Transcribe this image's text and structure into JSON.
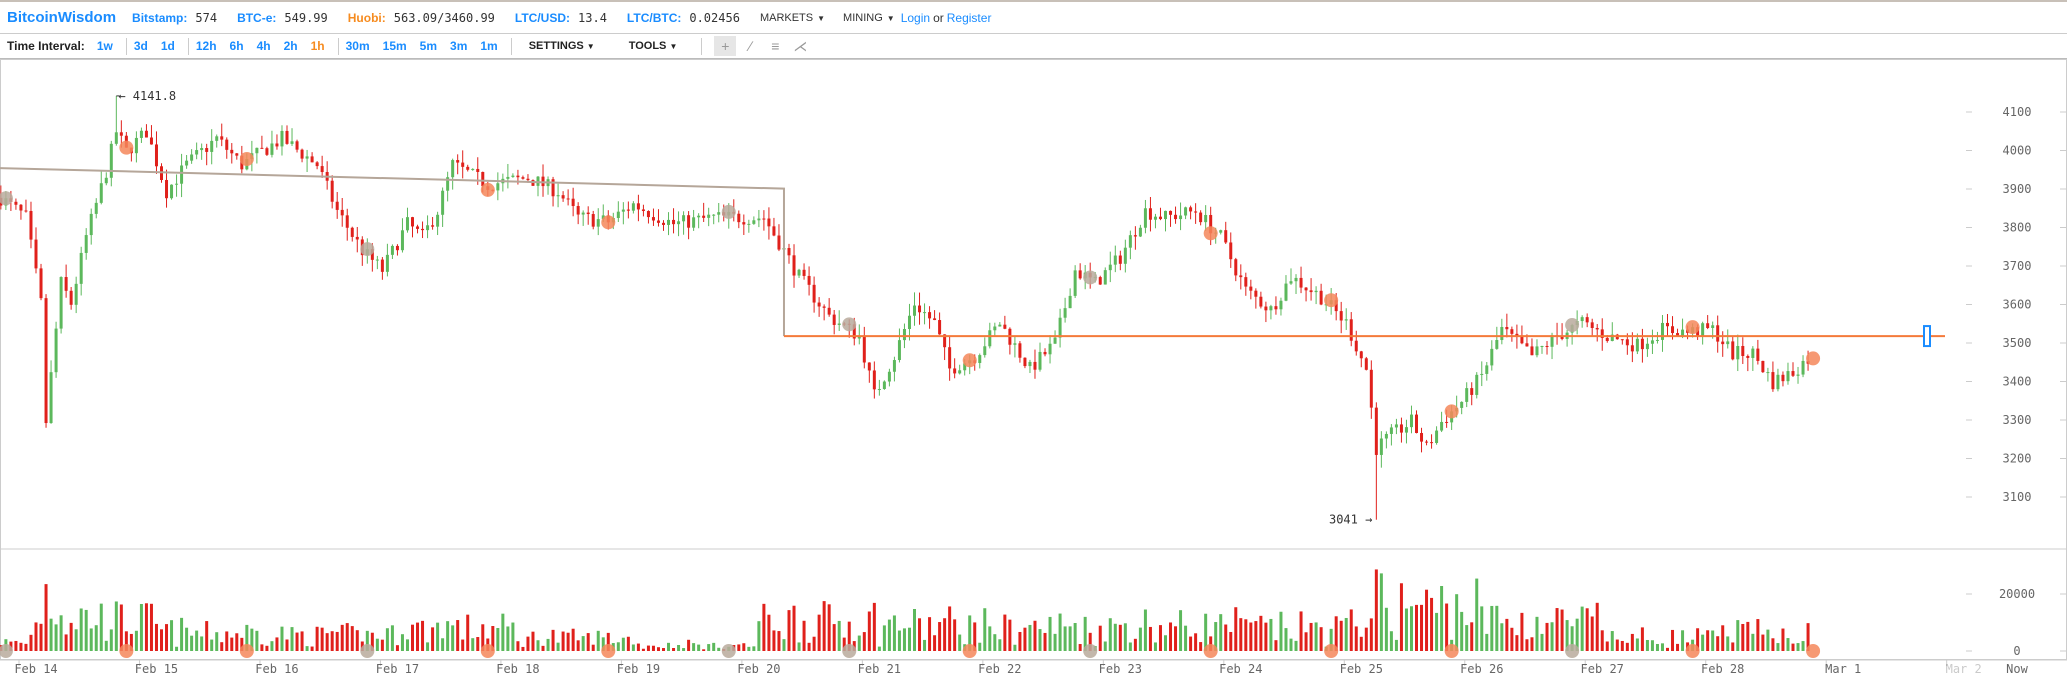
{
  "header": {
    "logo": "BitcoinWisdom",
    "tickers": [
      {
        "label": "Bitstamp:",
        "value": "574",
        "highlight": false
      },
      {
        "label": "BTC-e:",
        "value": "549.99",
        "highlight": false
      },
      {
        "label": "Huobi:",
        "value": "563.09/3460.99",
        "highlight": true
      },
      {
        "label": "LTC/USD:",
        "value": "13.4",
        "highlight": false
      },
      {
        "label": "LTC/BTC:",
        "value": "0.02456",
        "highlight": false
      }
    ],
    "markets": "MARKETS",
    "mining": "MINING",
    "login": "Login",
    "or": "or",
    "register": "Register"
  },
  "toolbar": {
    "time_interval_label": "Time Interval:",
    "groups": [
      [
        "1w"
      ],
      [
        "3d",
        "1d"
      ],
      [
        "12h",
        "6h",
        "4h",
        "2h",
        "1h"
      ],
      [
        "30m",
        "15m",
        "5m",
        "3m",
        "1m"
      ]
    ],
    "active_interval": "1h",
    "settings": "SETTINGS",
    "tools": "TOOLS",
    "tools_icons": [
      "crosshair-icon",
      "line-icon",
      "horizontal-lines-icon",
      "fan-icon"
    ]
  },
  "colors": {
    "brand": "#1a8cff",
    "accent": "#f68b1f",
    "up": "#5cb85c",
    "down": "#e0201b",
    "trend": "#b5a699",
    "level": "#f47a3a",
    "marker_orange": "#f4875a",
    "marker_grey": "#b8aa9c",
    "handle": "#1a8cff"
  },
  "chart_data": {
    "type": "candlestick",
    "interval": "1h",
    "price_axis": {
      "ticks": [
        3100,
        3200,
        3300,
        3400,
        3500,
        3600,
        3700,
        3800,
        3900,
        4000,
        4100
      ]
    },
    "volume_axis": {
      "ticks": [
        0,
        20000
      ]
    },
    "date_labels": [
      "Feb 14",
      "Feb 15",
      "Feb 16",
      "Feb 17",
      "Feb 18",
      "Feb 19",
      "Feb 20",
      "Feb 21",
      "Feb 22",
      "Feb 23",
      "Feb 24",
      "Feb 25",
      "Feb 26",
      "Feb 27",
      "Feb 28",
      "Mar 1",
      "Mar 2"
    ],
    "now_label": "Now",
    "close_path": [
      [
        "02-13 17:00",
        3877
      ],
      [
        "02-13 22:00",
        3826
      ],
      [
        "02-14 01:00",
        3603
      ],
      [
        "02-14 02:00",
        3295
      ],
      [
        "02-14 05:00",
        3655
      ],
      [
        "02-14 07:00",
        3603
      ],
      [
        "02-14 10:00",
        3775
      ],
      [
        "02-14 14:00",
        3946
      ],
      [
        "02-14 16:00",
        4049
      ],
      [
        "02-14 18:00",
        3997
      ],
      [
        "02-14 22:00",
        4049
      ],
      [
        "02-15 02:00",
        3894
      ],
      [
        "02-15 06:00",
        3963
      ],
      [
        "02-15 12:00",
        4031
      ],
      [
        "02-15 17:00",
        3963
      ],
      [
        "02-16 01:00",
        4031
      ],
      [
        "02-16 08:00",
        3963
      ],
      [
        "02-16 12:00",
        3843
      ],
      [
        "02-16 17:00",
        3740
      ],
      [
        "02-16 21:00",
        3689
      ],
      [
        "02-17 02:00",
        3809
      ],
      [
        "02-17 05:00",
        3775
      ],
      [
        "02-17 08:00",
        3843
      ],
      [
        "02-17 11:00",
        3963
      ],
      [
        "02-17 18:00",
        3912
      ],
      [
        "02-18 02:00",
        3929
      ],
      [
        "02-18 08:00",
        3894
      ],
      [
        "02-18 12:00",
        3826
      ],
      [
        "02-18 18:00",
        3815
      ],
      [
        "02-18 23:00",
        3860
      ],
      [
        "02-19 07:00",
        3809
      ],
      [
        "02-19 15:00",
        3826
      ],
      [
        "02-20 01:00",
        3826
      ],
      [
        "02-20 05:00",
        3740
      ],
      [
        "02-20 08:00",
        3672
      ],
      [
        "02-20 14:00",
        3569
      ],
      [
        "02-20 20:00",
        3518
      ],
      [
        "02-20 23:00",
        3364
      ],
      [
        "02-21 03:00",
        3466
      ],
      [
        "02-21 07:00",
        3603
      ],
      [
        "02-21 11:00",
        3552
      ],
      [
        "02-21 14:00",
        3432
      ],
      [
        "02-21 19:00",
        3466
      ],
      [
        "02-22 00:00",
        3552
      ],
      [
        "02-22 06:00",
        3432
      ],
      [
        "02-22 11:00",
        3500
      ],
      [
        "02-22 15:00",
        3689
      ],
      [
        "02-22 19:00",
        3655
      ],
      [
        "02-23 00:00",
        3723
      ],
      [
        "02-23 05:00",
        3843
      ],
      [
        "02-23 09:00",
        3826
      ],
      [
        "02-23 15:00",
        3843
      ],
      [
        "02-23 20:00",
        3775
      ],
      [
        "02-24 01:00",
        3637
      ],
      [
        "02-24 06:00",
        3586
      ],
      [
        "02-24 10:00",
        3672
      ],
      [
        "02-24 16:00",
        3620
      ],
      [
        "02-24 21:00",
        3552
      ],
      [
        "02-25 01:00",
        3432
      ],
      [
        "02-25 03:00",
        3227
      ],
      [
        "02-25 06:00",
        3261
      ],
      [
        "02-25 10:00",
        3295
      ],
      [
        "02-25 13:00",
        3227
      ],
      [
        "02-25 16:00",
        3295
      ],
      [
        "02-25 20:00",
        3347
      ],
      [
        "02-26 00:00",
        3415
      ],
      [
        "02-26 04:00",
        3535
      ],
      [
        "02-26 10:00",
        3466
      ],
      [
        "02-26 15:00",
        3518
      ],
      [
        "02-26 20:00",
        3552
      ],
      [
        "02-27 01:00",
        3518
      ],
      [
        "02-27 07:00",
        3494
      ],
      [
        "02-27 12:00",
        3535
      ],
      [
        "02-27 17:00",
        3528
      ],
      [
        "02-27 22:00",
        3535
      ],
      [
        "02-28 02:00",
        3473
      ],
      [
        "02-28 06:00",
        3473
      ],
      [
        "02-28 10:00",
        3398
      ],
      [
        "02-28 14:00",
        3425
      ],
      [
        "02-28 17:00",
        3460
      ]
    ],
    "high": {
      "time": "02-14 16:00",
      "price": 4141.8,
      "label": "← 4141.8"
    },
    "low": {
      "time": "02-25 03:00",
      "price": 3041,
      "label": "3041 →"
    },
    "daily_volume_level": [
      3000,
      12000,
      7000,
      6000,
      9000,
      5000,
      2000,
      12000,
      10000,
      9000,
      10000,
      9000,
      18000,
      12000,
      5000,
      7000
    ],
    "trend_line": [
      [
        "02-13 12:00",
        3956
      ],
      [
        "02-20 05:00",
        3901
      ],
      [
        "02-20 05:00",
        3518
      ]
    ],
    "level_line": {
      "from": "02-20 05:00",
      "price": 3518
    },
    "markers": [
      "grey",
      "orange",
      "orange",
      "grey",
      "orange",
      "orange",
      "grey",
      "grey",
      "orange",
      "grey",
      "orange",
      "orange",
      "orange",
      "grey",
      "orange",
      "orange"
    ]
  }
}
